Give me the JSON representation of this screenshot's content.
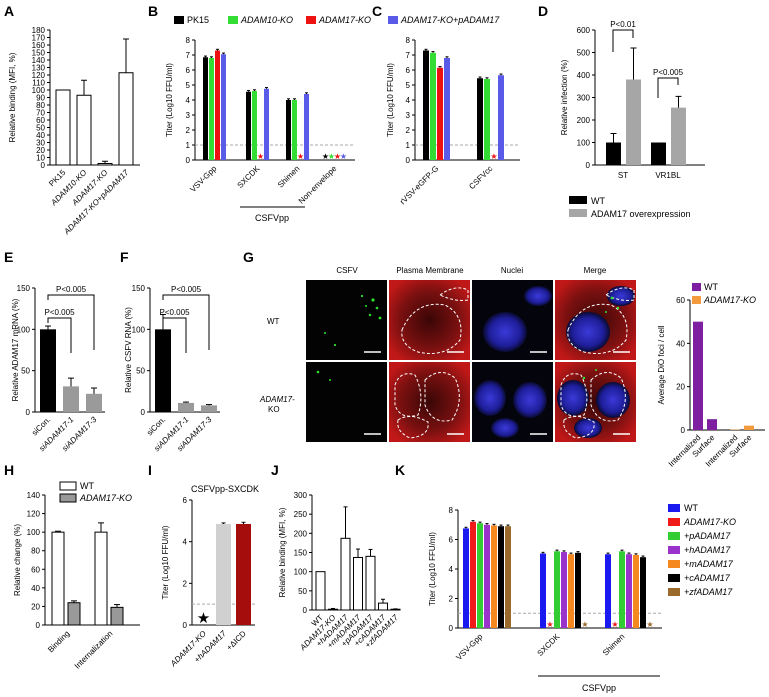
{
  "labels": {
    "A": "A",
    "B": "B",
    "C": "C",
    "D": "D",
    "E": "E",
    "F": "F",
    "G": "G",
    "H": "H",
    "I": "I",
    "J": "J",
    "K": "K"
  },
  "chart_data": [
    {
      "id": "A",
      "type": "bar",
      "ylabel": "Relative binding (MFI, %)",
      "ylim": [
        0,
        180
      ],
      "yticks": [
        0,
        10,
        20,
        30,
        40,
        50,
        60,
        70,
        80,
        90,
        100,
        110,
        120,
        130,
        140,
        150,
        160,
        170,
        180
      ],
      "categories": [
        "PK15",
        "ADAM10-KO",
        "ADAM17-KO",
        "ADAM17-KO+pADAM17"
      ],
      "values": [
        100,
        93,
        2,
        123
      ],
      "errors": [
        0,
        20,
        3,
        45
      ]
    },
    {
      "id": "B",
      "type": "bar",
      "ylabel": "Titer (Log10 FFU/ml)",
      "ylim": [
        0,
        8
      ],
      "yticks": [
        0,
        1,
        2,
        3,
        4,
        5,
        6,
        7,
        8
      ],
      "legend": [
        "PK15",
        "ADAM10-KO",
        "ADAM17-KO",
        "ADAM17-KO+pADAM17"
      ],
      "colors": [
        "#000000",
        "#33dd33",
        "#ee1111",
        "#5a5ae8"
      ],
      "categories": [
        "VSV-Gpp",
        "SXCDK",
        "Shimen",
        "Non-envelope"
      ],
      "group_label": "CSFVpp",
      "values": [
        [
          6.85,
          6.8,
          7.3,
          7.05
        ],
        [
          4.55,
          4.6,
          0,
          4.75
        ],
        [
          4.0,
          4.0,
          0,
          4.4
        ],
        [
          0,
          0,
          0,
          0
        ]
      ],
      "stars": [
        [],
        [
          2
        ],
        [
          2
        ],
        [
          0,
          1,
          2,
          3
        ]
      ],
      "detection_limit": 1
    },
    {
      "id": "C",
      "type": "bar",
      "ylabel": "Titer (Log10 FFU/ml)",
      "ylim": [
        0,
        8
      ],
      "yticks": [
        0,
        1,
        2,
        3,
        4,
        5,
        6,
        7,
        8
      ],
      "categories": [
        "rVSV-eGFP-G",
        "CSFVcc"
      ],
      "values": [
        [
          7.3,
          7.15,
          6.15,
          6.8
        ],
        [
          5.45,
          5.4,
          0,
          5.65
        ]
      ],
      "stars": [
        [],
        [
          2
        ]
      ],
      "detection_limit": 1
    },
    {
      "id": "D",
      "type": "bar",
      "ylabel": "Relative infection (%)",
      "ylim": [
        0,
        600
      ],
      "yticks": [
        0,
        100,
        200,
        300,
        400,
        500,
        600
      ],
      "categories": [
        "ST",
        "VR1BL"
      ],
      "legend": [
        "WT",
        "ADAM17 overexpression"
      ],
      "colors": [
        "#000000",
        "#a6a6a6"
      ],
      "values": [
        [
          100,
          380
        ],
        [
          100,
          255
        ]
      ],
      "errors": [
        [
          40,
          140
        ],
        [
          0,
          50
        ]
      ],
      "pvalues": [
        "P<0.01",
        "P<0.005"
      ]
    },
    {
      "id": "E",
      "type": "bar",
      "ylabel": "Relative ADAM17 mRNA (%)",
      "ylim": [
        0,
        150
      ],
      "yticks": [
        0,
        50,
        100,
        150
      ],
      "categories": [
        "siCon.",
        "siADAM17-1",
        "siADAM17-3"
      ],
      "values": [
        100,
        31,
        22
      ],
      "errors": [
        4,
        10,
        7
      ],
      "colors": [
        "#000000",
        "#9a9a9a",
        "#9a9a9a"
      ],
      "pvalues": [
        "P<0.005",
        "P<0.005"
      ]
    },
    {
      "id": "F",
      "type": "bar",
      "ylabel": "Relative CSFV RNA (%)",
      "ylim": [
        0,
        150
      ],
      "yticks": [
        0,
        50,
        100,
        150
      ],
      "categories": [
        "siCon.",
        "siADAM17-1",
        "siADAM17-3"
      ],
      "values": [
        100,
        11,
        8
      ],
      "errors": [
        18,
        1,
        1
      ],
      "colors": [
        "#000000",
        "#9a9a9a",
        "#9a9a9a"
      ],
      "pvalues": [
        "P<0.005",
        "P<0.005"
      ]
    },
    {
      "id": "G",
      "type": "bar",
      "ylabel": "Average DiO foci / cell",
      "ylim": [
        0,
        60
      ],
      "yticks": [
        0,
        20,
        40,
        60
      ],
      "legend": [
        "WT",
        "ADAM17-KO"
      ],
      "colors": [
        "#7d1fa0",
        "#f39a3c"
      ],
      "categories": [
        "Internalized",
        "Surface",
        "Internalized",
        "Surface"
      ],
      "values": [
        50,
        5,
        0.2,
        2
      ],
      "series_index": [
        0,
        0,
        1,
        1
      ]
    },
    {
      "id": "H",
      "type": "bar",
      "ylabel": "Relative change (%)",
      "ylim": [
        0,
        140
      ],
      "yticks": [
        0,
        20,
        40,
        60,
        80,
        100,
        120,
        140
      ],
      "legend": [
        "WT",
        "ADAM17-KO"
      ],
      "colors": [
        "#ffffff",
        "#999999"
      ],
      "categories": [
        "Binding",
        "Internalization"
      ],
      "values": [
        [
          100,
          24
        ],
        [
          100,
          19
        ]
      ],
      "errors": [
        [
          1,
          2
        ],
        [
          10,
          3
        ]
      ]
    },
    {
      "id": "I",
      "type": "bar",
      "title": "CSFVpp-SXCDK",
      "ylabel": "Titer (Log10 FFU/ml)",
      "ylim": [
        0,
        6
      ],
      "yticks": [
        0,
        2,
        4,
        6
      ],
      "categories": [
        "ADAM17-KO",
        "+hADAM17",
        "+ΔICD"
      ],
      "values": [
        0,
        4.85,
        4.85
      ],
      "errors": [
        0,
        0.05,
        0.08
      ],
      "colors": [
        "#000000",
        "#d0d0d0",
        "#a50d0d"
      ],
      "detection_limit": 1
    },
    {
      "id": "J",
      "type": "bar",
      "ylabel": "Relative binding (MFI, %)",
      "ylim": [
        0,
        300
      ],
      "yticks": [
        0,
        50,
        100,
        150,
        200,
        250,
        300
      ],
      "categories": [
        "WT",
        "ADAM17-KO",
        "+hADAM17",
        "+mADAM17",
        "+pADAM17",
        "+cADAM17",
        "+zfADAM17"
      ],
      "values": [
        100,
        2,
        187,
        137,
        140,
        18,
        2
      ],
      "errors": [
        0,
        2,
        82,
        22,
        18,
        10,
        1
      ]
    },
    {
      "id": "K",
      "type": "bar",
      "ylabel": "Titer (Log10 FFU/ml)",
      "ylim": [
        0,
        8
      ],
      "yticks": [
        0,
        2,
        4,
        6,
        8
      ],
      "legend": [
        "WT",
        "ADAM17-KO",
        "+pADAM17",
        "+hADAM17",
        "+mADAM17",
        "+cADAM17",
        "+zfADAM17"
      ],
      "colors": [
        "#1a1af0",
        "#f01a1a",
        "#33cc33",
        "#9933cc",
        "#f5891f",
        "#000000",
        "#9a6a2a"
      ],
      "categories": [
        "VSV-Gpp",
        "SXCDK",
        "Shimen"
      ],
      "group_label": "CSFVpp",
      "values": [
        [
          6.75,
          7.2,
          7.1,
          7.0,
          6.95,
          6.9,
          6.9
        ],
        [
          5.05,
          0,
          5.2,
          5.15,
          5.0,
          5.1,
          0
        ],
        [
          5.0,
          0,
          5.2,
          5.0,
          4.95,
          4.8,
          0
        ]
      ],
      "stars": [
        [],
        [
          1,
          6
        ],
        [
          1,
          6
        ]
      ],
      "detection_limit": 1
    }
  ],
  "micrograph": {
    "columns": [
      "CSFV",
      "Plasma Membrane",
      "Nuclei",
      "Merge"
    ],
    "rows": [
      "WT",
      "ADAM17-",
      "KO"
    ]
  }
}
